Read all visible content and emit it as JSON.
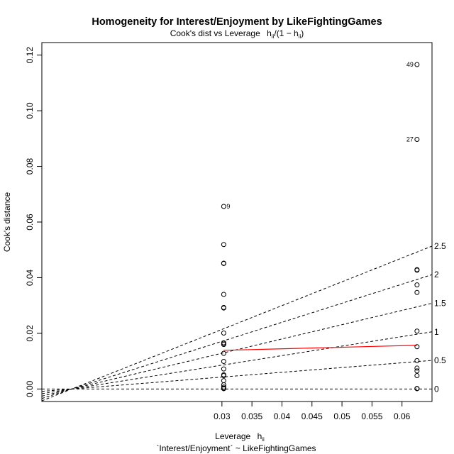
{
  "chart_data": {
    "type": "scatter",
    "title": "Homogeneity for Interest/Enjoyment by LikeFightingGames",
    "subtitle": {
      "prefix": "Cook's dist vs Leverage",
      "h": "h",
      "ii": "ii",
      "slash": "/",
      "open": "(1 − h",
      "close": ")"
    },
    "xlabel": {
      "text": "Leverage",
      "h": "h",
      "ii": "ii"
    },
    "ylabel": "Cook's distance",
    "formula": "`Interest/Enjoyment` ~ LikeFightingGames",
    "xlim": [
      0,
      0.065
    ],
    "ylim": [
      -0.0045,
      0.1245
    ],
    "x_ticks": [
      {
        "value": 0.03,
        "label": "0.03"
      },
      {
        "value": 0.035,
        "label": "0.035"
      },
      {
        "value": 0.04,
        "label": "0.04"
      },
      {
        "value": 0.045,
        "label": "0.045"
      },
      {
        "value": 0.05,
        "label": "0.05"
      },
      {
        "value": 0.055,
        "label": "0.055"
      },
      {
        "value": 0.06,
        "label": "0.06"
      }
    ],
    "y_ticks": [
      {
        "value": 0.0,
        "label": "0.00"
      },
      {
        "value": 0.02,
        "label": "0.02"
      },
      {
        "value": 0.04,
        "label": "0.04"
      },
      {
        "value": 0.06,
        "label": "0.06"
      },
      {
        "value": 0.08,
        "label": "0.08"
      },
      {
        "value": 0.1,
        "label": "0.10"
      },
      {
        "value": 0.12,
        "label": "0.12"
      }
    ],
    "points": [
      {
        "x": 0.0303,
        "y": 0.0656,
        "label": "9"
      },
      {
        "x": 0.0303,
        "y": 0.0519
      },
      {
        "x": 0.0303,
        "y": 0.0452
      },
      {
        "x": 0.0303,
        "y": 0.0451
      },
      {
        "x": 0.0303,
        "y": 0.034
      },
      {
        "x": 0.0303,
        "y": 0.0293
      },
      {
        "x": 0.0303,
        "y": 0.0291
      },
      {
        "x": 0.0303,
        "y": 0.0201
      },
      {
        "x": 0.0303,
        "y": 0.0166
      },
      {
        "x": 0.0303,
        "y": 0.0164
      },
      {
        "x": 0.0303,
        "y": 0.016
      },
      {
        "x": 0.0303,
        "y": 0.0128
      },
      {
        "x": 0.0303,
        "y": 0.0099
      },
      {
        "x": 0.0303,
        "y": 0.0072
      },
      {
        "x": 0.0303,
        "y": 0.0051
      },
      {
        "x": 0.0303,
        "y": 0.0048
      },
      {
        "x": 0.0303,
        "y": 0.003
      },
      {
        "x": 0.0303,
        "y": 0.0015
      },
      {
        "x": 0.0303,
        "y": 0.0007
      },
      {
        "x": 0.0303,
        "y": 0.0003
      },
      {
        "x": 0.0303,
        "y": 0.0001
      },
      {
        "x": 0.0625,
        "y": 0.1166,
        "label": "49"
      },
      {
        "x": 0.0625,
        "y": 0.0897,
        "label": "27"
      },
      {
        "x": 0.0625,
        "y": 0.0429
      },
      {
        "x": 0.0625,
        "y": 0.0427
      },
      {
        "x": 0.0625,
        "y": 0.0374
      },
      {
        "x": 0.0625,
        "y": 0.0347
      },
      {
        "x": 0.0625,
        "y": 0.0208
      },
      {
        "x": 0.0625,
        "y": 0.0152
      },
      {
        "x": 0.0625,
        "y": 0.0102
      },
      {
        "x": 0.0625,
        "y": 0.0075
      },
      {
        "x": 0.0625,
        "y": 0.0065
      },
      {
        "x": 0.0625,
        "y": 0.0048
      },
      {
        "x": 0.0625,
        "y": 0.0002
      },
      {
        "x": 0.0625,
        "y": 0.0001
      }
    ],
    "smoother": {
      "x": [
        0.0303,
        0.0625
      ],
      "y": [
        0.0139,
        0.0157
      ],
      "color": "#ff0000"
    },
    "contours": [
      {
        "value": 0,
        "label": "0"
      },
      {
        "value": 0.5,
        "label": "0.5"
      },
      {
        "value": 1,
        "label": "1"
      },
      {
        "value": 1.5,
        "label": "1.5"
      },
      {
        "value": 2,
        "label": "2"
      },
      {
        "value": 2.5,
        "label": "2.5"
      }
    ],
    "contour_origin_x": 0.0053,
    "grid": false,
    "colors": {
      "points": "#000000",
      "smoother": "#ff0000",
      "contours": "#000000",
      "axes": "#000000"
    }
  }
}
